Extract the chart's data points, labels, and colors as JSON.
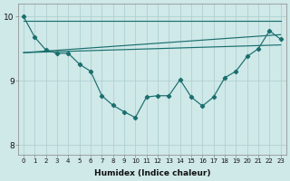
{
  "xlabel": "Humidex (Indice chaleur)",
  "bg_color": "#cfe8e8",
  "line_color": "#1a6e6e",
  "xlim": [
    -0.5,
    23.5
  ],
  "ylim": [
    7.85,
    10.2
  ],
  "yticks": [
    8,
    9,
    10
  ],
  "xticks": [
    0,
    1,
    2,
    3,
    4,
    5,
    6,
    7,
    8,
    9,
    10,
    11,
    12,
    13,
    14,
    15,
    16,
    17,
    18,
    19,
    20,
    21,
    22,
    23
  ],
  "line_straight1": {
    "x": [
      0,
      23
    ],
    "y": [
      9.94,
      9.94
    ]
  },
  "line_straight2": {
    "x": [
      0,
      23
    ],
    "y": [
      9.44,
      9.72
    ]
  },
  "line_straight3": {
    "x": [
      0,
      23
    ],
    "y": [
      9.44,
      9.56
    ]
  },
  "line_main_x": [
    0,
    1,
    2,
    3,
    4,
    5,
    6,
    7,
    8,
    9,
    10,
    11,
    12,
    13,
    14,
    15,
    16,
    17,
    18,
    19,
    20,
    21,
    22,
    23
  ],
  "line_main_y": [
    10.0,
    9.68,
    9.48,
    9.43,
    9.43,
    9.26,
    9.15,
    8.77,
    8.62,
    8.52,
    8.43,
    8.75,
    8.77,
    8.77,
    9.02,
    8.75,
    8.61,
    8.75,
    9.05,
    9.15,
    9.38,
    9.5,
    9.78,
    9.65
  ],
  "grid_color": "#aacccc",
  "spine_color": "#888888"
}
